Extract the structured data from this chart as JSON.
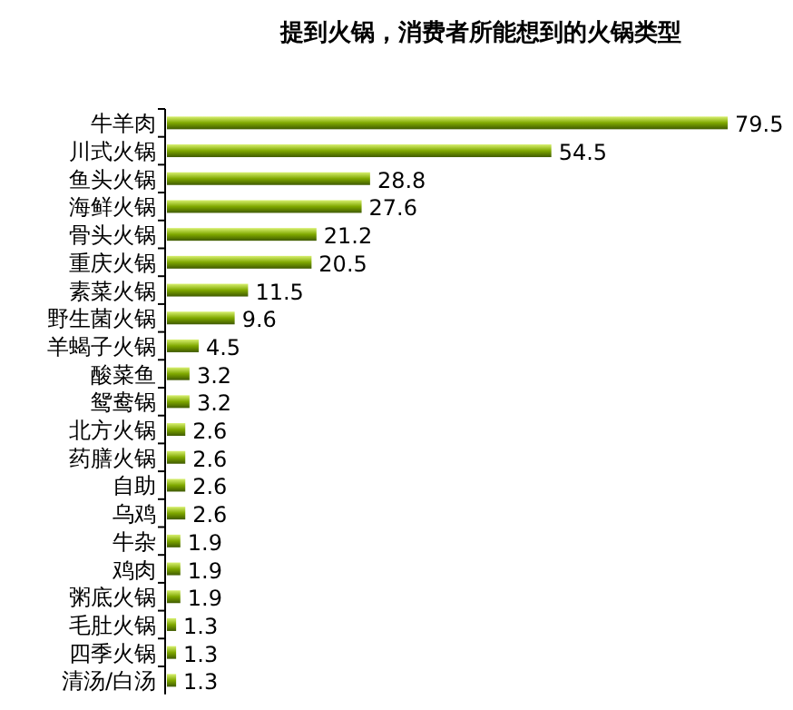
{
  "chart_data": {
    "type": "bar",
    "orientation": "horizontal",
    "title": "提到火锅，消费者所能想到的火锅类型",
    "categories": [
      "牛羊肉",
      "川式火锅",
      "鱼头火锅",
      "海鲜火锅",
      "骨头火锅",
      "重庆火锅",
      "素菜火锅",
      "野生菌火锅",
      "羊蝎子火锅",
      "酸菜鱼",
      "鸳鸯锅",
      "北方火锅",
      "药膳火锅",
      "自助",
      "乌鸡",
      "牛杂",
      "鸡肉",
      "粥底火锅",
      "毛肚火锅",
      "四季火锅",
      "清汤/白汤"
    ],
    "values": [
      79.5,
      54.5,
      28.8,
      27.6,
      21.2,
      20.5,
      11.5,
      9.6,
      4.5,
      3.2,
      3.2,
      2.6,
      2.6,
      2.6,
      2.6,
      1.9,
      1.9,
      1.9,
      1.3,
      1.3,
      1.3
    ],
    "color": "#7fa800",
    "data_labels": true
  }
}
